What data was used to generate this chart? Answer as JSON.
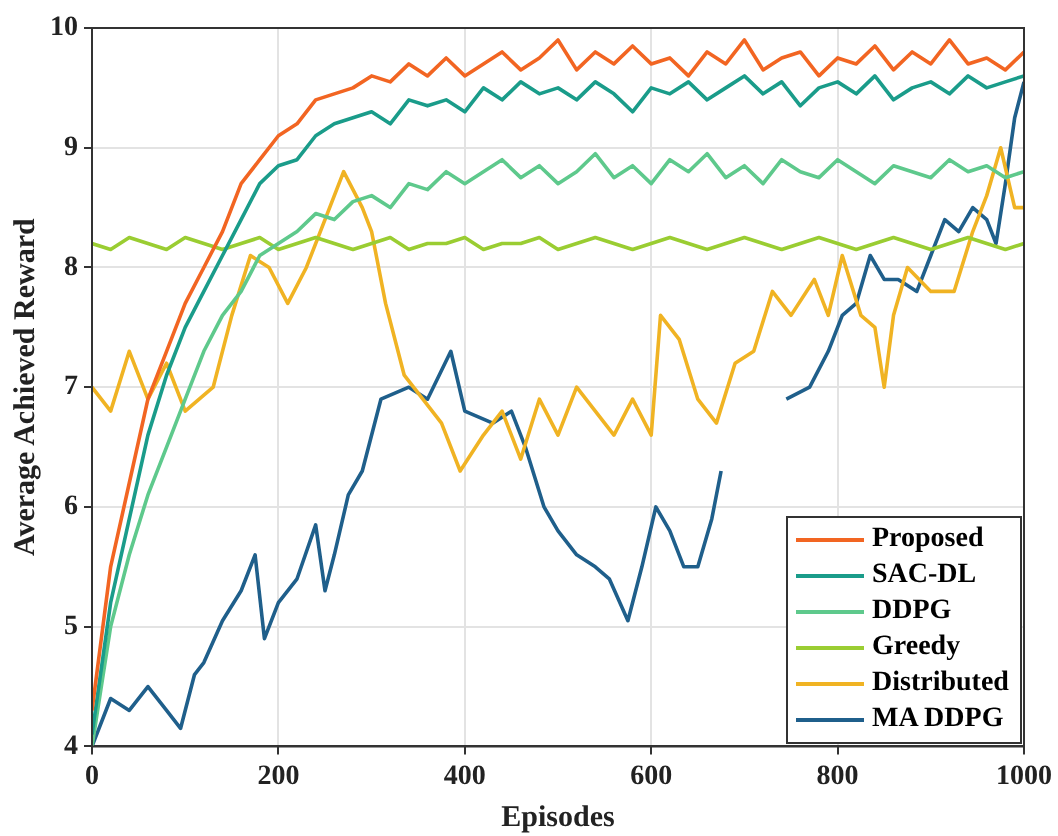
{
  "chart_data": {
    "type": "line",
    "xlabel": "Episodes",
    "ylabel": "Average Achieved Reward",
    "xlim": [
      0,
      1000
    ],
    "xticks": [
      0,
      200,
      400,
      600,
      800,
      1000
    ],
    "ylim": [
      4,
      10
    ],
    "yticks": [
      4,
      5,
      6,
      7,
      8,
      9,
      10
    ],
    "grid": true,
    "legend": "bottom right",
    "marker": "none",
    "line_style": "solid",
    "series": [
      {
        "name": "Proposed",
        "color": "#f26522",
        "x": [
          0,
          20,
          40,
          60,
          80,
          100,
          120,
          140,
          160,
          180,
          200,
          220,
          240,
          260,
          280,
          300,
          320,
          340,
          360,
          380,
          400,
          420,
          440,
          460,
          480,
          500,
          520,
          540,
          560,
          580,
          600,
          620,
          640,
          660,
          680,
          700,
          720,
          740,
          760,
          780,
          800,
          820,
          840,
          860,
          880,
          900,
          920,
          940,
          960,
          980,
          1000
        ],
        "values": [
          4.3,
          5.5,
          6.2,
          6.9,
          7.3,
          7.7,
          8.0,
          8.3,
          8.7,
          8.9,
          9.1,
          9.2,
          9.4,
          9.45,
          9.5,
          9.6,
          9.55,
          9.7,
          9.6,
          9.75,
          9.6,
          9.7,
          9.8,
          9.65,
          9.75,
          9.9,
          9.65,
          9.8,
          9.7,
          9.85,
          9.7,
          9.75,
          9.6,
          9.8,
          9.7,
          9.9,
          9.65,
          9.75,
          9.8,
          9.6,
          9.75,
          9.7,
          9.85,
          9.65,
          9.8,
          9.7,
          9.9,
          9.7,
          9.75,
          9.65,
          9.8
        ]
      },
      {
        "name": "SAC-DL",
        "color": "#1a9c8a",
        "x": [
          0,
          20,
          40,
          60,
          80,
          100,
          120,
          140,
          160,
          180,
          200,
          220,
          240,
          260,
          280,
          300,
          320,
          340,
          360,
          380,
          400,
          420,
          440,
          460,
          480,
          500,
          520,
          540,
          560,
          580,
          600,
          620,
          640,
          660,
          680,
          700,
          720,
          740,
          760,
          780,
          800,
          820,
          840,
          860,
          880,
          900,
          920,
          940,
          960,
          980,
          1000
        ],
        "values": [
          4.1,
          5.2,
          5.9,
          6.6,
          7.1,
          7.5,
          7.8,
          8.1,
          8.4,
          8.7,
          8.85,
          8.9,
          9.1,
          9.2,
          9.25,
          9.3,
          9.2,
          9.4,
          9.35,
          9.4,
          9.3,
          9.5,
          9.4,
          9.55,
          9.45,
          9.5,
          9.4,
          9.55,
          9.45,
          9.3,
          9.5,
          9.45,
          9.55,
          9.4,
          9.5,
          9.6,
          9.45,
          9.55,
          9.35,
          9.5,
          9.55,
          9.45,
          9.6,
          9.4,
          9.5,
          9.55,
          9.45,
          9.6,
          9.5,
          9.55,
          9.6
        ]
      },
      {
        "name": "DDPG",
        "color": "#5ec98c",
        "x": [
          0,
          20,
          40,
          60,
          80,
          100,
          120,
          140,
          160,
          180,
          200,
          220,
          240,
          260,
          280,
          300,
          320,
          340,
          360,
          380,
          400,
          420,
          440,
          460,
          480,
          500,
          520,
          540,
          560,
          580,
          600,
          620,
          640,
          660,
          680,
          700,
          720,
          740,
          760,
          780,
          800,
          820,
          840,
          860,
          880,
          900,
          920,
          940,
          960,
          980,
          1000
        ],
        "values": [
          4.0,
          5.0,
          5.6,
          6.1,
          6.5,
          6.9,
          7.3,
          7.6,
          7.8,
          8.1,
          8.2,
          8.3,
          8.45,
          8.4,
          8.55,
          8.6,
          8.5,
          8.7,
          8.65,
          8.8,
          8.7,
          8.8,
          8.9,
          8.75,
          8.85,
          8.7,
          8.8,
          8.95,
          8.75,
          8.85,
          8.7,
          8.9,
          8.8,
          8.95,
          8.75,
          8.85,
          8.7,
          8.9,
          8.8,
          8.75,
          8.9,
          8.8,
          8.7,
          8.85,
          8.8,
          8.75,
          8.9,
          8.8,
          8.85,
          8.75,
          8.8
        ]
      },
      {
        "name": "Greedy",
        "color": "#9acd32",
        "x": [
          0,
          20,
          40,
          60,
          80,
          100,
          120,
          140,
          160,
          180,
          200,
          220,
          240,
          260,
          280,
          300,
          320,
          340,
          360,
          380,
          400,
          420,
          440,
          460,
          480,
          500,
          520,
          540,
          560,
          580,
          600,
          620,
          640,
          660,
          680,
          700,
          720,
          740,
          760,
          780,
          800,
          820,
          840,
          860,
          880,
          900,
          920,
          940,
          960,
          980,
          1000
        ],
        "values": [
          8.2,
          8.15,
          8.25,
          8.2,
          8.15,
          8.25,
          8.2,
          8.15,
          8.2,
          8.25,
          8.15,
          8.2,
          8.25,
          8.2,
          8.15,
          8.2,
          8.25,
          8.15,
          8.2,
          8.2,
          8.25,
          8.15,
          8.2,
          8.2,
          8.25,
          8.15,
          8.2,
          8.25,
          8.2,
          8.15,
          8.2,
          8.25,
          8.2,
          8.15,
          8.2,
          8.25,
          8.2,
          8.15,
          8.2,
          8.25,
          8.2,
          8.15,
          8.2,
          8.25,
          8.2,
          8.15,
          8.2,
          8.25,
          8.2,
          8.15,
          8.2
        ]
      },
      {
        "name": "Distributed",
        "color": "#f0b323",
        "x": [
          0,
          20,
          40,
          60,
          80,
          100,
          130,
          150,
          170,
          190,
          210,
          230,
          250,
          270,
          290,
          300,
          315,
          335,
          355,
          375,
          395,
          420,
          440,
          460,
          480,
          500,
          520,
          540,
          560,
          580,
          600,
          610,
          630,
          650,
          670,
          690,
          710,
          730,
          750,
          775,
          790,
          805,
          825,
          840,
          850,
          860,
          875,
          900,
          925,
          945,
          960,
          975,
          990,
          1000
        ],
        "values": [
          7.0,
          6.8,
          7.3,
          6.9,
          7.2,
          6.8,
          7.0,
          7.6,
          8.1,
          8.0,
          7.7,
          8.0,
          8.4,
          8.8,
          8.5,
          8.3,
          7.7,
          7.1,
          6.9,
          6.7,
          6.3,
          6.6,
          6.8,
          6.4,
          6.9,
          6.6,
          7.0,
          6.8,
          6.6,
          6.9,
          6.6,
          7.6,
          7.4,
          6.9,
          6.7,
          7.2,
          7.3,
          7.8,
          7.6,
          7.9,
          7.6,
          8.1,
          7.6,
          7.5,
          7.0,
          7.6,
          8.0,
          7.8,
          7.8,
          8.3,
          8.6,
          9.0,
          8.5,
          8.5
        ]
      },
      {
        "name": "MA DDPG",
        "color": "#1f5f8b",
        "x": [
          0,
          20,
          40,
          60,
          80,
          95,
          110,
          120,
          140,
          160,
          175,
          185,
          200,
          220,
          240,
          250,
          260,
          275,
          290,
          310,
          340,
          360,
          385,
          400,
          430,
          450,
          465,
          485,
          500,
          520,
          540,
          555,
          575,
          590,
          605,
          620,
          635,
          650,
          665,
          675,
          700,
          720,
          745,
          770,
          790,
          805,
          820,
          835,
          850,
          865,
          885,
          900,
          915,
          930,
          945,
          960,
          970,
          980,
          990,
          1000
        ],
        "values": [
          4.0,
          4.4,
          4.3,
          4.5,
          4.3,
          4.15,
          4.6,
          4.7,
          5.05,
          5.3,
          5.6,
          4.9,
          5.2,
          5.4,
          5.85,
          5.3,
          5.6,
          6.1,
          6.3,
          6.9,
          7.0,
          6.9,
          7.3,
          6.8,
          6.7,
          6.8,
          6.5,
          6.0,
          5.8,
          5.6,
          5.5,
          5.4,
          5.05,
          5.5,
          6.0,
          5.8,
          5.5,
          5.5,
          5.9,
          6.3,
          null,
          null,
          6.9,
          7.0,
          7.3,
          7.6,
          7.7,
          8.1,
          7.9,
          7.9,
          7.8,
          8.1,
          8.4,
          8.3,
          8.5,
          8.4,
          8.2,
          8.7,
          9.25,
          9.55
        ]
      }
    ]
  }
}
